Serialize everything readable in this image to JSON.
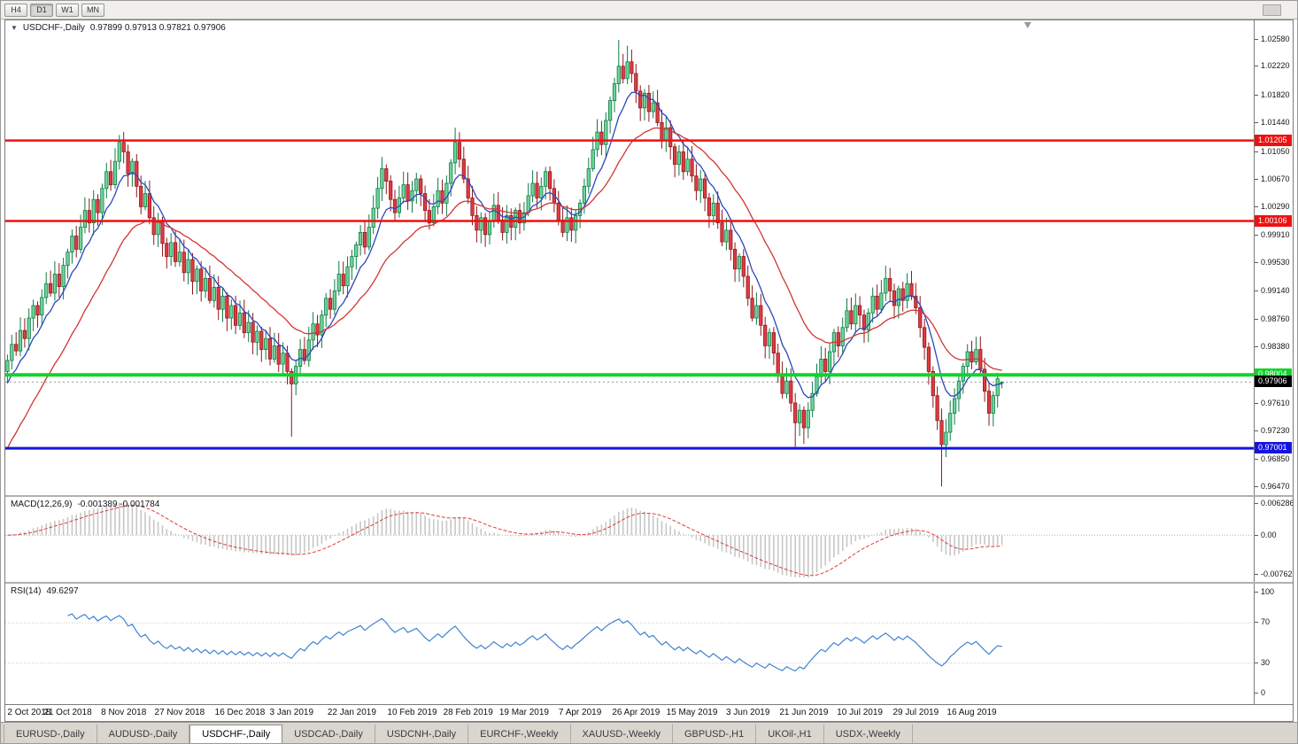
{
  "window": {
    "title": "USDCHF-,Daily"
  },
  "toolbar": {
    "timeframes": [
      {
        "label": "H4",
        "active": false
      },
      {
        "label": "D1",
        "active": true
      },
      {
        "label": "W1",
        "active": false
      },
      {
        "label": "MN",
        "active": false
      }
    ]
  },
  "chart_title": {
    "collapse_icon": "▼",
    "symbol": "USDCHF-,Daily",
    "ohlc": "0.97899 0.97913 0.97821 0.97906"
  },
  "tabs": [
    {
      "label": "EURUSD-,Daily",
      "active": false
    },
    {
      "label": "AUDUSD-,Daily",
      "active": false
    },
    {
      "label": "USDCHF-,Daily",
      "active": true
    },
    {
      "label": "USDCAD-,Daily",
      "active": false
    },
    {
      "label": "USDCNH-,Daily",
      "active": false
    },
    {
      "label": "EURCHF-,Weekly",
      "active": false
    },
    {
      "label": "XAUUSD-,Weekly",
      "active": false
    },
    {
      "label": "GBPUSD-,H1",
      "active": false
    },
    {
      "label": "UKOil-,H1",
      "active": false
    },
    {
      "label": "USDX-,Weekly",
      "active": false
    }
  ],
  "chart_data": {
    "type": "candlestick",
    "symbol": "USDCHF",
    "timeframe": "Daily",
    "price_min": 0.9647,
    "price_max": 1.0258,
    "y_ticks": [
      "1.02580",
      "1.02220",
      "1.01820",
      "1.01440",
      "1.01050",
      "1.00670",
      "1.00290",
      "0.99910",
      "0.99530",
      "0.99140",
      "0.98760",
      "0.98380",
      "0.98000",
      "0.97610",
      "0.97230",
      "0.96850",
      "0.96470"
    ],
    "x_labels": [
      {
        "text": "2 Oct 2018",
        "i": 0
      },
      {
        "text": "21 Oct 2018",
        "i": 14
      },
      {
        "text": "8 Nov 2018",
        "i": 27
      },
      {
        "text": "27 Nov 2018",
        "i": 40
      },
      {
        "text": "16 Dec 2018",
        "i": 54
      },
      {
        "text": "3 Jan 2019",
        "i": 66
      },
      {
        "text": "22 Jan 2019",
        "i": 80
      },
      {
        "text": "10 Feb 2019",
        "i": 94
      },
      {
        "text": "28 Feb 2019",
        "i": 107
      },
      {
        "text": "19 Mar 2019",
        "i": 120
      },
      {
        "text": "7 Apr 2019",
        "i": 133
      },
      {
        "text": "26 Apr 2019",
        "i": 146
      },
      {
        "text": "15 May 2019",
        "i": 159
      },
      {
        "text": "3 Jun 2019",
        "i": 172
      },
      {
        "text": "21 Jun 2019",
        "i": 185
      },
      {
        "text": "10 Jul 2019",
        "i": 198
      },
      {
        "text": "29 Jul 2019",
        "i": 211
      },
      {
        "text": "16 Aug 2019",
        "i": 224
      }
    ],
    "closes": [
      0.982,
      0.9842,
      0.9833,
      0.9861,
      0.985,
      0.9878,
      0.9895,
      0.9882,
      0.9906,
      0.9925,
      0.9912,
      0.9938,
      0.9921,
      0.995,
      0.9968,
      0.999,
      0.9972,
      1.0002,
      1.0025,
      1.0008,
      1.004,
      1.0022,
      1.0055,
      1.0078,
      1.006,
      1.0092,
      1.0118,
      1.0105,
      1.0075,
      1.0092,
      1.0058,
      1.003,
      1.0048,
      1.0015,
      0.9992,
      1.001,
      0.998,
      0.9962,
      0.9981,
      0.9955,
      0.9968,
      0.994,
      0.9958,
      0.9928,
      0.9945,
      0.9915,
      0.9932,
      0.9902,
      0.992,
      0.989,
      0.9908,
      0.9878,
      0.9895,
      0.9868,
      0.9885,
      0.9858,
      0.9872,
      0.9845,
      0.986,
      0.9835,
      0.985,
      0.9822,
      0.984,
      0.9815,
      0.983,
      0.9805,
      0.9788,
      0.9812,
      0.9835,
      0.982,
      0.9848,
      0.987,
      0.9855,
      0.9882,
      0.9905,
      0.989,
      0.9915,
      0.9938,
      0.9922,
      0.9948,
      0.9962,
      0.9978,
      0.9995,
      0.9975,
      1.0002,
      1.0028,
      1.0055,
      1.0082,
      1.0065,
      1.004,
      1.0022,
      1.0042,
      1.006,
      1.0038,
      1.0052,
      1.0068,
      1.0048,
      1.0025,
      1.0008,
      1.003,
      1.0052,
      1.0035,
      1.0062,
      1.009,
      1.0118,
      1.0095,
      1.0068,
      1.0042,
      1.0018,
      0.9998,
      1.0015,
      0.9992,
      1.001,
      1.0032,
      1.0012,
      0.9995,
      1.0018,
      1.0002,
      1.0025,
      1.0008,
      1.0022,
      1.0045,
      1.0062,
      1.0042,
      1.0058,
      1.0078,
      1.0055,
      1.0035,
      1.0012,
      0.9995,
      1.0015,
      0.9998,
      1.0018,
      1.0035,
      1.0058,
      1.0082,
      1.0108,
      1.0132,
      1.0115,
      1.0148,
      1.0175,
      1.0198,
      1.0222,
      1.0205,
      1.0228,
      1.0212,
      1.0188,
      1.0165,
      1.0185,
      1.016,
      1.0172,
      1.0145,
      1.012,
      1.0138,
      1.0112,
      1.0088,
      1.0105,
      1.0078,
      1.0095,
      1.0072,
      1.0052,
      1.0068,
      1.0042,
      1.0018,
      1.0035,
      1.0008,
      0.9982,
      0.9998,
      0.9972,
      0.9945,
      0.9962,
      0.9935,
      0.9905,
      0.9878,
      0.9895,
      0.9868,
      0.984,
      0.9858,
      0.983,
      0.9802,
      0.9775,
      0.9792,
      0.9762,
      0.9735,
      0.9752,
      0.9728,
      0.9752,
      0.9775,
      0.9798,
      0.9822,
      0.9805,
      0.9832,
      0.9858,
      0.984,
      0.9865,
      0.9888,
      0.987,
      0.9895,
      0.9882,
      0.9862,
      0.9885,
      0.9908,
      0.989,
      0.9912,
      0.9932,
      0.9915,
      0.9895,
      0.9918,
      0.9902,
      0.9925,
      0.9908,
      0.9892,
      0.9865,
      0.9838,
      0.9805,
      0.9772,
      0.9738,
      0.9705,
      0.9722,
      0.9748,
      0.9768,
      0.9792,
      0.9812,
      0.9832,
      0.9818,
      0.9835,
      0.9808,
      0.9778,
      0.9748,
      0.9772,
      0.9795,
      0.97906
    ],
    "wick_overrides": {
      "26": {
        "high": 1.0128
      },
      "66": {
        "low": 0.9716
      },
      "87": {
        "high": 1.0098
      },
      "104": {
        "high": 1.0138
      },
      "142": {
        "high": 1.0258
      },
      "144": {
        "high": 1.025
      },
      "183": {
        "low": 0.9702
      },
      "185": {
        "low": 0.9706
      },
      "217": {
        "low": 0.9648
      },
      "218": {
        "low": 0.9688
      },
      "231": {
        "open": 0.97899,
        "high": 0.97913,
        "low": 0.97821,
        "close": 0.97906
      }
    },
    "levels": [
      {
        "price": 1.01205,
        "label": "1.01205",
        "color": "#ee1111",
        "width": 2.5,
        "type": "resistance"
      },
      {
        "price": 1.00106,
        "label": "1.00106",
        "color": "#ee1111",
        "width": 2.5,
        "type": "resistance"
      },
      {
        "price": 0.98004,
        "label": "0.98004",
        "color": "#11d42c",
        "width": 4,
        "type": "support"
      },
      {
        "price": 0.97001,
        "label": "0.97001",
        "color": "#1414e0",
        "width": 3,
        "type": "support"
      }
    ],
    "current_price": {
      "value": 0.97906,
      "label": "0.97906"
    },
    "colors": {
      "bull_fill": "#6fd49a",
      "bull_border": "#0c7c45",
      "bear_fill": "#e03b40",
      "bear_border": "#8f171d",
      "ma_fast": "#2b48bd",
      "ma_slow": "#d23434",
      "macd_hist": "#c7c7c7",
      "macd_signal": "#e03a3a",
      "rsi_line": "#3f83d2"
    },
    "macd": {
      "label": "MACD(12,26,9)",
      "values_text": "-0.001389 -0.001784",
      "scale": [
        "0.006286",
        "0.00",
        "-0.00762"
      ]
    },
    "rsi": {
      "label": "RSI(14)",
      "value_text": "49.6297",
      "scale": [
        "100",
        "70",
        "30",
        "0"
      ]
    }
  }
}
